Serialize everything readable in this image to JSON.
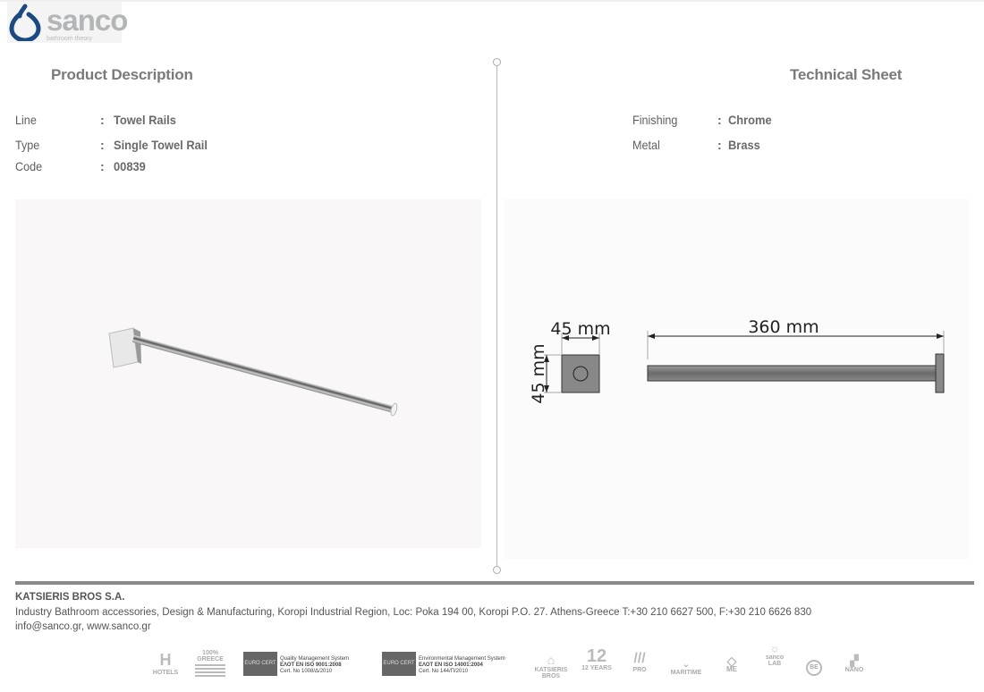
{
  "logo": {
    "brand": "sanco",
    "tagline": "bathroom theory",
    "color": "#1b4a80"
  },
  "left": {
    "title": "Product Description",
    "specs": [
      {
        "label": "Line",
        "value": "Towel Rails"
      },
      {
        "label": "Type",
        "value": "Single Towel Rail"
      },
      {
        "label": "Code",
        "value": "00839"
      }
    ]
  },
  "right": {
    "title": "Technical Sheet",
    "specs": [
      {
        "label": "Finishing",
        "value": "Chrome"
      },
      {
        "label": "Metal",
        "value": "Brass"
      }
    ]
  },
  "drawing": {
    "base_width": "45 mm",
    "base_height": "45 mm",
    "length": "360 mm"
  },
  "footer": {
    "company": "KATSIERIS BROS S.A.",
    "address": "Industry Bathroom accessories, Design & Manufacturing, Koropi Industrial Region, Loc: Poka 194 00, Koropi P.O. 27. Athens-Greece   T:+30 210 6627 500, F:+30 210 6626 830",
    "contact": "info@sanco.gr, www.sanco.gr",
    "badges": [
      "HOTELS",
      "100% GREECE",
      "KATSIERIS BROS",
      "12 YEARS",
      "PRO",
      "MARITIME",
      "ME",
      "sanco LAB",
      "BE",
      "NANO"
    ],
    "certs": [
      {
        "badge": "EURO CERT",
        "line1": "Quality Management System",
        "line2": "EΛΟΤ EN ISO 9001:2008",
        "line3": "Cert. No 1008/Δ/2010"
      },
      {
        "badge": "EURO CERT",
        "line1": "Environmental Management System",
        "line2": "EΛΟΤ EN ISO 14001:2004",
        "line3": "Cert. No 144/Π/2010"
      }
    ]
  }
}
